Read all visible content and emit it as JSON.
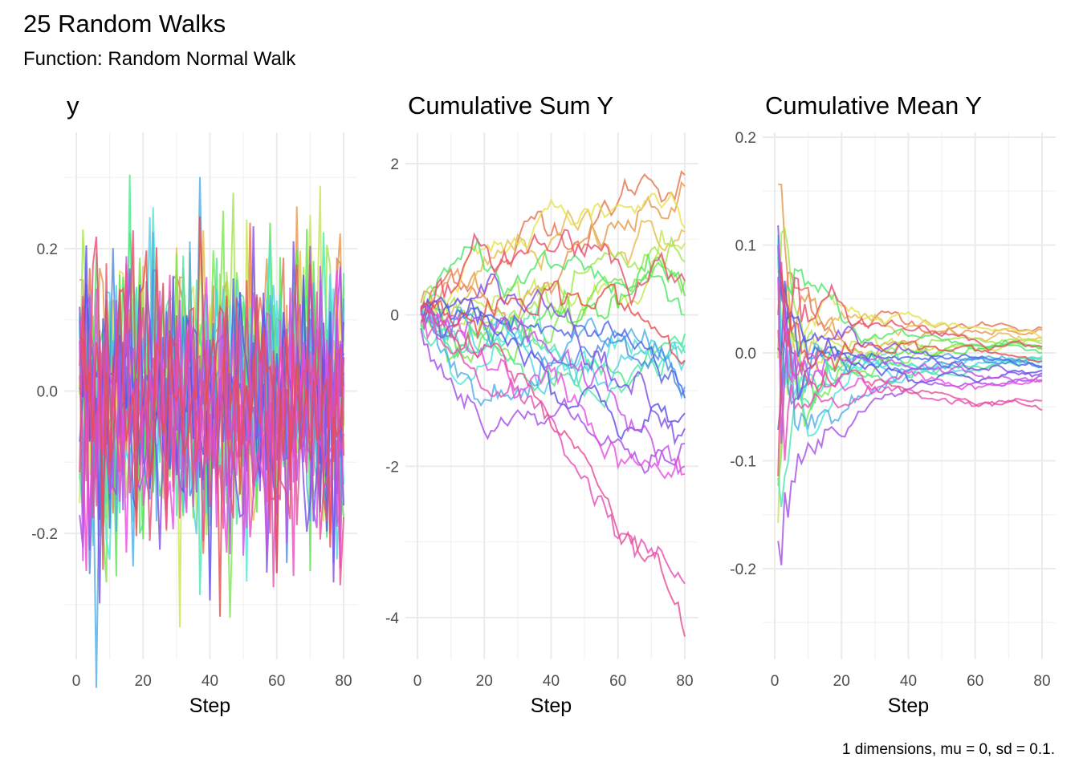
{
  "chart_data": {
    "title": "25 Random Walks",
    "subtitle": "Function: Random Normal Walk",
    "caption": "1 dimensions, mu = 0, sd = 0.1.",
    "type": "line",
    "n_series": 25,
    "steps": 80,
    "mu": 0,
    "sd": 0.1,
    "legend": "none",
    "grid": true,
    "final_cumulative_sum": [
      1.85,
      1.7,
      1.1,
      1.15,
      0.95,
      0.7,
      0.45,
      0.25,
      0.0,
      -0.25,
      -0.4,
      -0.5,
      -0.6,
      -0.95,
      -1.0,
      -1.1,
      -1.3,
      -1.5,
      -1.7,
      -2.0,
      -2.1,
      -3.55,
      -4.25,
      0.45,
      -0.6
    ],
    "panels": [
      {
        "title": "y",
        "xlabel": "Step",
        "xlim": [
          0,
          80
        ],
        "ylim": [
          -0.36,
          0.36
        ],
        "xticks": [
          0,
          20,
          40,
          60,
          80
        ],
        "yticks": [
          -0.2,
          0.0,
          0.2
        ],
        "ytick_labels": [
          "-0.2",
          "0.0",
          "0.2"
        ]
      },
      {
        "title": "Cumulative Sum Y",
        "xlabel": "Step",
        "xlim": [
          0,
          80
        ],
        "ylim": [
          -4.4,
          2.4
        ],
        "xticks": [
          0,
          20,
          40,
          60,
          80
        ],
        "yticks": [
          -4,
          -2,
          0,
          2
        ],
        "ytick_labels": [
          "-4",
          "-2",
          "0",
          "2"
        ]
      },
      {
        "title": "Cumulative Mean Y",
        "xlabel": "Step",
        "xlim": [
          0,
          80
        ],
        "ylim": [
          -0.27,
          0.2
        ],
        "xticks": [
          0,
          20,
          40,
          60,
          80
        ],
        "yticks": [
          -0.2,
          -0.1,
          0.0,
          0.1,
          0.2
        ],
        "ytick_labels": [
          "-0.2",
          "-0.1",
          "0.0",
          "0.1",
          "0.2"
        ]
      }
    ]
  }
}
